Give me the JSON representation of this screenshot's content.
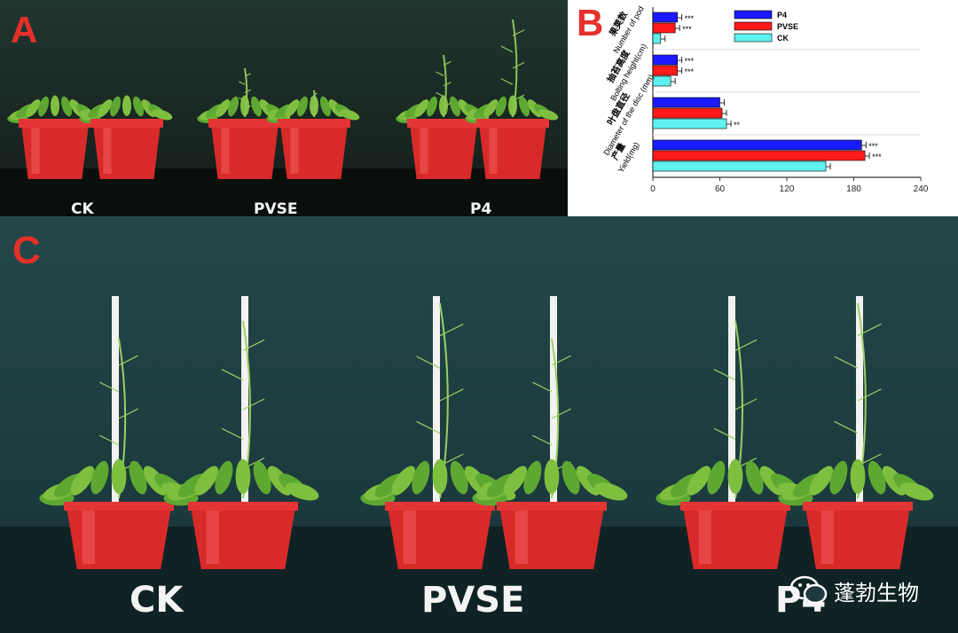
{
  "panels": {
    "a": {
      "letter": "A",
      "groups": [
        "CK",
        "PVSE",
        "P4"
      ]
    },
    "b": {
      "letter": "B"
    },
    "c": {
      "letter": "C",
      "groups": [
        "CK",
        "PVSE",
        "P4"
      ]
    }
  },
  "chart_data": {
    "type": "bar",
    "orientation": "horizontal",
    "categories": [
      {
        "zh": "果荚数",
        "en": "Number of pod"
      },
      {
        "zh": "抽苔高度",
        "en": "Bolting height(cm)"
      },
      {
        "zh": "叶盘直径",
        "en": "Diameter of the disc (mm)"
      },
      {
        "zh": "产量",
        "en": "Yield(mg)"
      }
    ],
    "series": [
      {
        "name": "P4",
        "color": "#1a1aff",
        "values": [
          22,
          22,
          60,
          187
        ],
        "significance": [
          "***",
          "***",
          "",
          "***"
        ]
      },
      {
        "name": "PVSE",
        "color": "#ff1a1a",
        "values": [
          20,
          22,
          62,
          190
        ],
        "significance": [
          "***",
          "***",
          "",
          "***"
        ]
      },
      {
        "name": "CK",
        "color": "#5ff0f0",
        "values": [
          7,
          16,
          66,
          155
        ],
        "significance": [
          "",
          "",
          "**",
          ""
        ]
      }
    ],
    "xlim": [
      0,
      240
    ],
    "xticks": [
      0,
      60,
      120,
      180,
      240
    ],
    "legend": "top-right"
  },
  "watermark": {
    "text": "蓬勃生物",
    "icon": "wechat-icon"
  }
}
